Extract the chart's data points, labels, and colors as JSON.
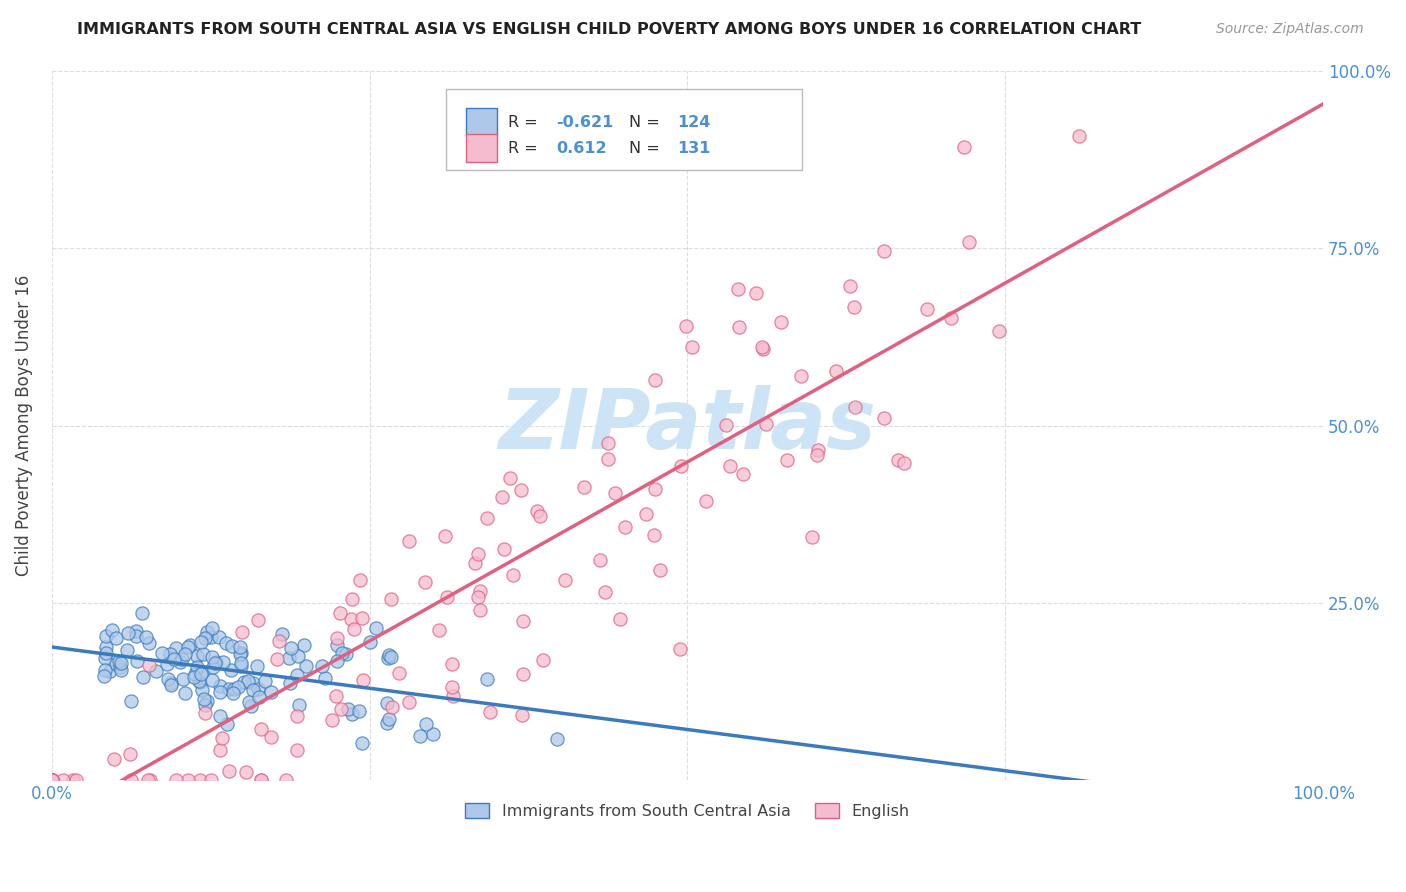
{
  "title": "IMMIGRANTS FROM SOUTH CENTRAL ASIA VS ENGLISH CHILD POVERTY AMONG BOYS UNDER 16 CORRELATION CHART",
  "source": "Source: ZipAtlas.com",
  "ylabel": "Child Poverty Among Boys Under 16",
  "legend_blue_R": "-0.621",
  "legend_blue_N": "124",
  "legend_pink_R": "0.612",
  "legend_pink_N": "131",
  "legend_label_blue": "Immigrants from South Central Asia",
  "legend_label_pink": "English",
  "blue_fill": "#adc8e8",
  "pink_fill": "#f5bcd0",
  "blue_edge": "#3a7abf",
  "pink_edge": "#e06080",
  "blue_line": "#3a7abf",
  "pink_line": "#e06080",
  "watermark_color": "#cce4f5",
  "bg_color": "#ffffff",
  "grid_color": "#dddddd",
  "title_color": "#222222",
  "source_color": "#999999",
  "tick_color": "#4a90d9",
  "label_color": "#444444",
  "seed": 7,
  "n_blue": 124,
  "n_pink": 131,
  "R_blue": -0.621,
  "R_pink": 0.612
}
